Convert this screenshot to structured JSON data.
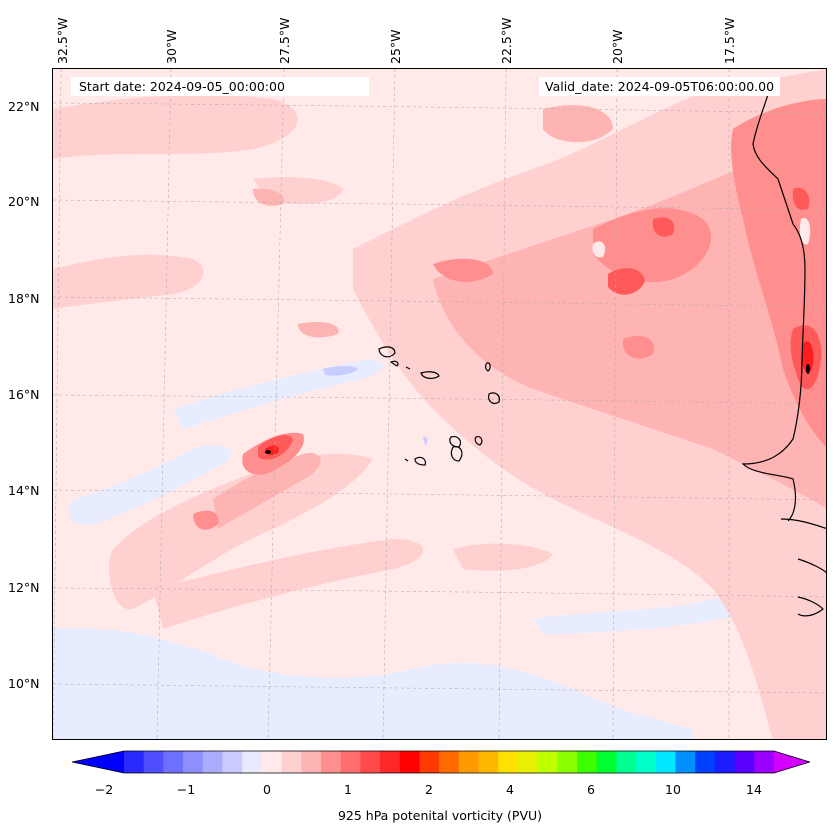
{
  "map": {
    "start_date": "Start date: 2024-09-05_00:00:00",
    "valid_date": "Valid_date: 2024-09-05T06:00:00.00",
    "lon_labels": [
      "32.5°W",
      "30°W",
      "27.5°W",
      "25°W",
      "22.5°W",
      "20°W",
      "17.5°W"
    ],
    "lat_labels": [
      "22°N",
      "20°N",
      "18°N",
      "16°N",
      "14°N",
      "12°N",
      "10°N"
    ],
    "colors": {
      "background": "#ffe9e9",
      "light_pink": "#ffd0d0",
      "mid_pink": "#ffb4b4",
      "red_mid": "#ff8f8f",
      "red_strong": "#ff5a5a",
      "red_max": "#ff1e1e",
      "light_blue": "#e8ecff",
      "coastline": "#000000"
    }
  },
  "colorbar": {
    "label": "925 hPa potenital vorticity (PVU)",
    "ticks": [
      "−2",
      "−1",
      "0",
      "1",
      "2",
      "4",
      "6",
      "10",
      "14"
    ],
    "colors": [
      "#0000ff",
      "#2a2aff",
      "#4f4fff",
      "#7070ff",
      "#8e8eff",
      "#acacff",
      "#cacaff",
      "#eaeaff",
      "#ffe9e9",
      "#ffd0d0",
      "#ffb4b4",
      "#ff8f8f",
      "#ff6f6f",
      "#ff4a4a",
      "#ff2828",
      "#ff0000",
      "#ff3a00",
      "#ff6a00",
      "#ff9a00",
      "#ffb800",
      "#ffe000",
      "#e6f000",
      "#c0ff00",
      "#8aff00",
      "#3cff00",
      "#00ff30",
      "#00ff90",
      "#00ffc8",
      "#00e8ff",
      "#0090ff",
      "#0040ff",
      "#1c1cff",
      "#5a00ff",
      "#9a00ff",
      "#d400ff"
    ]
  }
}
